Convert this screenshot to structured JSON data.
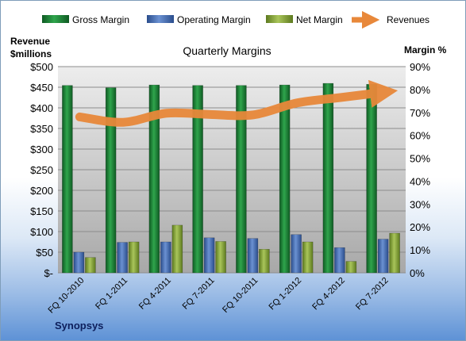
{
  "chart_data": {
    "type": "bar",
    "title": "Quarterly Margins",
    "company": "Synopsys",
    "y_left_label_line1": "Revenue",
    "y_left_label_line2": "$millions",
    "y_right_label": "Margin %",
    "categories": [
      "FQ 10-2010",
      "FQ 1-2011",
      "FQ 4-2011",
      "FQ 7-2011",
      "FQ 10-2011",
      "FQ 1-2012",
      "FQ 4-2012",
      "FQ 7-2012"
    ],
    "y_left_range": [
      0,
      500
    ],
    "y_left_ticks": [
      "$-",
      "$50",
      "$100",
      "$150",
      "$200",
      "$250",
      "$300",
      "$350",
      "$400",
      "$450",
      "$500"
    ],
    "y_right_range": [
      0,
      90
    ],
    "y_right_ticks": [
      "0%",
      "10%",
      "20%",
      "30%",
      "40%",
      "50%",
      "60%",
      "70%",
      "80%",
      "90%"
    ],
    "series": [
      {
        "name": "Gross Margin",
        "axis": "right",
        "kind": "bar",
        "color": "#1e8a3a",
        "values": [
          81.8,
          80.8,
          82.0,
          81.8,
          81.8,
          82.0,
          82.7,
          82.3
        ]
      },
      {
        "name": "Operating Margin",
        "axis": "right",
        "kind": "bar",
        "color": "#4a72b8",
        "values": [
          9.0,
          13.3,
          13.5,
          15.3,
          15.0,
          16.7,
          11.0,
          14.7
        ]
      },
      {
        "name": "Net Margin",
        "axis": "right",
        "kind": "bar",
        "color": "#8eac3e",
        "values": [
          6.7,
          13.5,
          20.8,
          13.7,
          10.3,
          13.5,
          5.0,
          17.3
        ]
      },
      {
        "name": "Revenues",
        "axis": "left",
        "kind": "line",
        "color": "#e8883a",
        "values": [
          378,
          365,
          387,
          384,
          383,
          412,
          425,
          438
        ]
      }
    ],
    "legend_position": "top",
    "grid": true
  }
}
